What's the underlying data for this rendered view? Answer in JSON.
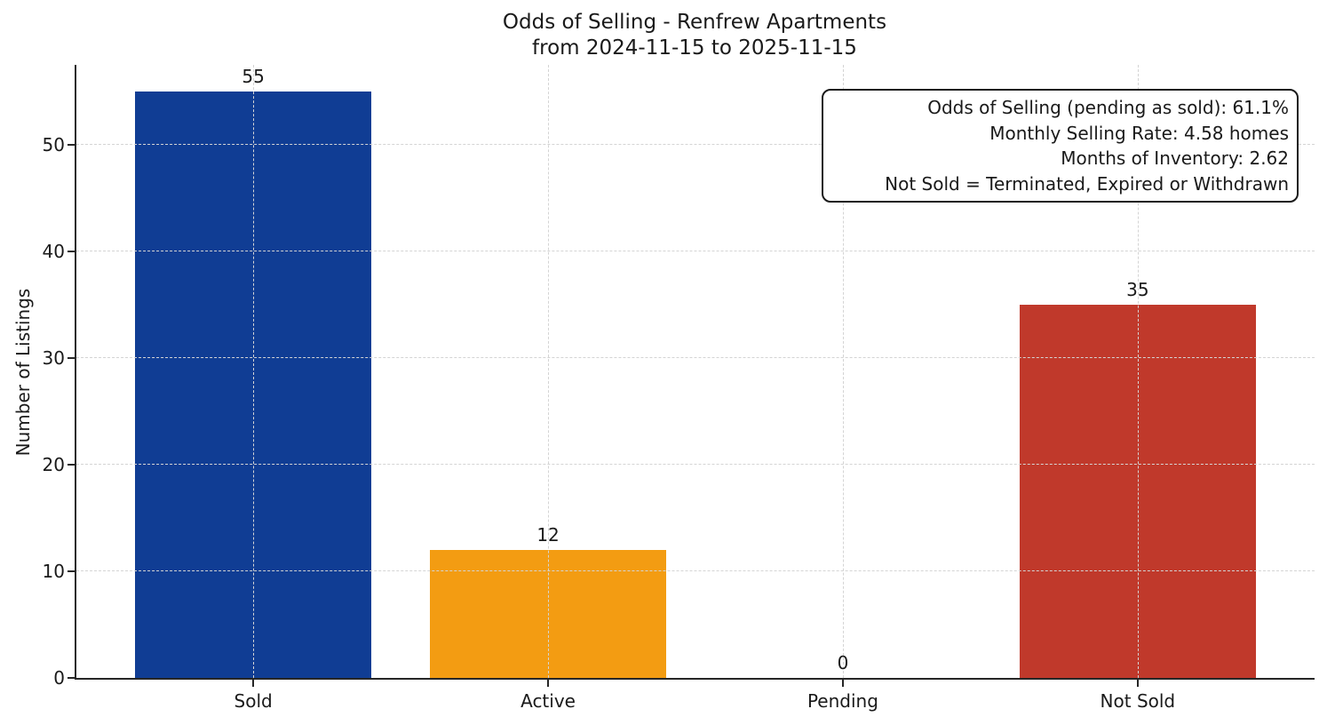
{
  "chart_data": {
    "type": "bar",
    "title": "Odds of Selling - Renfrew Apartments\nfrom 2024-11-15 to 2025-11-15",
    "title_lines": [
      "Odds of Selling - Renfrew Apartments",
      "from 2024-11-15 to 2025-11-15"
    ],
    "categories": [
      "Sold",
      "Active",
      "Pending",
      "Not Sold"
    ],
    "values": [
      55,
      12,
      0,
      35
    ],
    "bar_colors": [
      "#103d94",
      "#f39c12",
      "#808080",
      "#c0392b"
    ],
    "xlabel": "",
    "ylabel": "Number of Listings",
    "yticks": [
      0,
      10,
      20,
      30,
      40,
      50
    ],
    "ylim": [
      0,
      57.5
    ],
    "xlim": [
      -0.6,
      3.6
    ],
    "bar_width": 0.8,
    "grid": "both-dashed-over-bars",
    "legend": "none",
    "annotation": {
      "position": "top-right",
      "lines": [
        "Odds of Selling (pending as sold): 61.1%",
        "Monthly Selling Rate: 4.58 homes",
        "Months of Inventory: 2.62",
        "Not Sold = Terminated, Expired or Withdrawn"
      ]
    }
  },
  "colors": {
    "text": "#1a1a1a",
    "spine": "#262626",
    "grid": "#d4d4d4",
    "background": "#ffffff"
  }
}
